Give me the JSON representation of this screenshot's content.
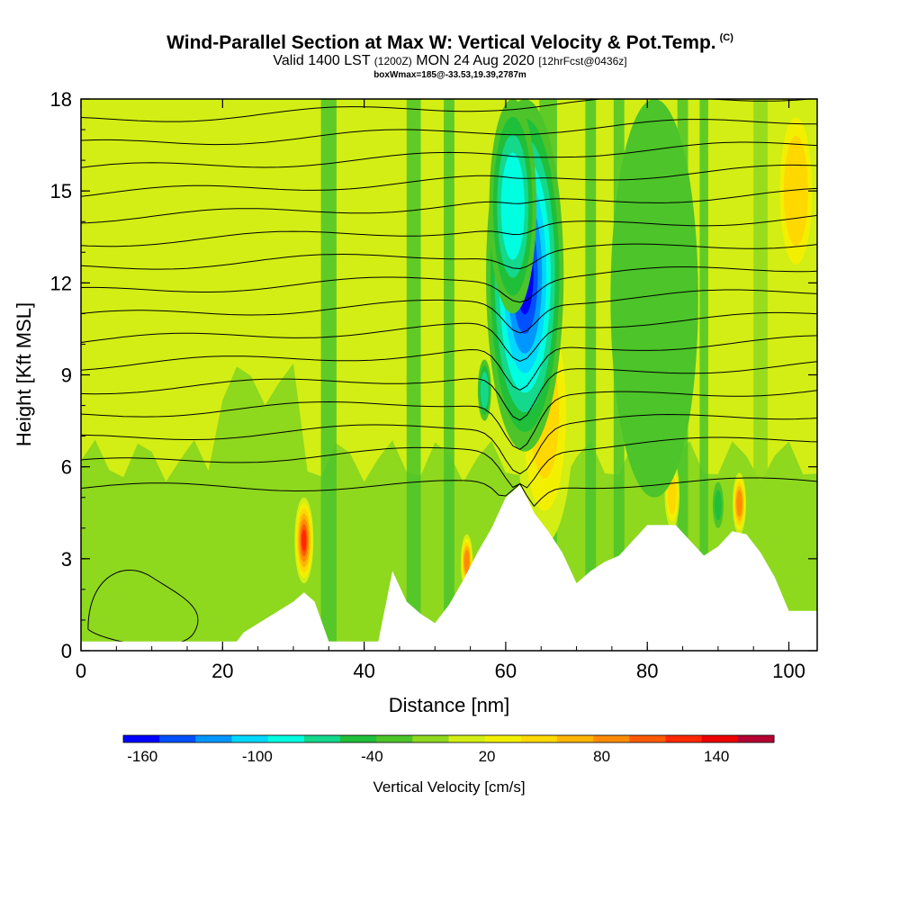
{
  "header": {
    "title": "Wind-Parallel Section at Max W: Vertical Velocity & Pot.Temp.",
    "title_tag": "(C)",
    "subtitle_valid": "Valid 1400 LST",
    "subtitle_utc": "(1200Z)",
    "subtitle_date": "MON 24 Aug 2020",
    "subtitle_fcst": "[12hrFcst@0436z]",
    "subtitle_box": "boxWmax=185@-33.53,19.39,2787m"
  },
  "chart_data": {
    "type": "heatmap",
    "title": "Wind-Parallel Section at Max W: Vertical Velocity & Pot.Temp.",
    "xlabel": "Distance [nm]",
    "ylabel": "Height [Kft MSL]",
    "xlim": [
      0,
      104
    ],
    "ylim": [
      0,
      18
    ],
    "xticks": [
      0,
      20,
      40,
      60,
      80,
      100
    ],
    "yticks": [
      0,
      3,
      6,
      9,
      12,
      15,
      18
    ],
    "background_w_cms": 10,
    "updrafts": [
      {
        "x": 31.5,
        "z_bottom": 2.2,
        "z_top": 5.0,
        "w_cms": 140
      },
      {
        "x": 54.5,
        "z_bottom": 2.0,
        "z_top": 3.8,
        "w_cms": 110
      },
      {
        "x": 61.5,
        "z_bottom": 7.2,
        "z_top": 11.0,
        "w_cms": 150
      },
      {
        "x": 65.5,
        "z_bottom": 3.5,
        "z_top": 12.0,
        "w_cms": 60
      },
      {
        "x": 93.0,
        "z_bottom": 3.8,
        "z_top": 5.8,
        "w_cms": 110
      },
      {
        "x": 83.5,
        "z_bottom": 4.0,
        "z_top": 6.2,
        "w_cms": 70
      },
      {
        "x": 101.0,
        "z_bottom": 12.0,
        "z_top": 18.0,
        "w_cms": 70
      }
    ],
    "downdrafts": [
      {
        "x": 62.7,
        "z_bottom": 6.5,
        "z_top": 18.0,
        "w_cms": -160
      },
      {
        "x": 61.0,
        "z_bottom": 11.0,
        "z_top": 18.0,
        "w_cms": -90
      },
      {
        "x": 57.0,
        "z_bottom": 7.5,
        "z_top": 9.5,
        "w_cms": -70
      },
      {
        "x": 81.0,
        "z_bottom": 5.0,
        "z_top": 18.0,
        "w_cms": -30
      },
      {
        "x": 90.0,
        "z_bottom": 4.0,
        "z_top": 5.5,
        "w_cms": -40
      }
    ],
    "terrain_profile": {
      "x": [
        0,
        22,
        23,
        30,
        31.5,
        33,
        35,
        42,
        44,
        46,
        48,
        50,
        52,
        54,
        56,
        58,
        60,
        62,
        63,
        64,
        66,
        68,
        70,
        72,
        74,
        76,
        78,
        80,
        84,
        86,
        88,
        90,
        92,
        94,
        96,
        98,
        100,
        104
      ],
      "z_kft": [
        0.3,
        0.3,
        0.6,
        1.6,
        1.9,
        1.6,
        0.3,
        0.3,
        2.6,
        1.6,
        1.2,
        0.9,
        1.5,
        2.3,
        3.2,
        4.0,
        5.0,
        5.4,
        5.0,
        4.5,
        3.9,
        3.2,
        2.2,
        2.6,
        2.9,
        3.1,
        3.6,
        4.1,
        4.1,
        3.6,
        3.1,
        3.4,
        3.9,
        3.8,
        3.2,
        2.4,
        1.3,
        1.3
      ]
    },
    "theta_contours": {
      "z_start_kft": 5.3,
      "spacing_kft": 0.8,
      "count": 16,
      "units": "C"
    },
    "colorbar": {
      "label": "Vertical Velocity [cm/s]",
      "min": -170,
      "max": 170,
      "step": 20,
      "tick_values": [
        -160,
        -100,
        -40,
        20,
        80,
        140
      ],
      "tick_labels": [
        "-160",
        "-100",
        "-40",
        "20",
        "80",
        "140"
      ],
      "colors": [
        "#0000ff",
        "#0050ff",
        "#0096ff",
        "#00d8ff",
        "#00ffe0",
        "#14d88c",
        "#1fbf3a",
        "#4cc42a",
        "#8ed81e",
        "#d2ee14",
        "#f2f000",
        "#ffd800",
        "#ffb400",
        "#ff8c00",
        "#ff5a00",
        "#ff2800",
        "#ec0000",
        "#b40032"
      ]
    }
  }
}
